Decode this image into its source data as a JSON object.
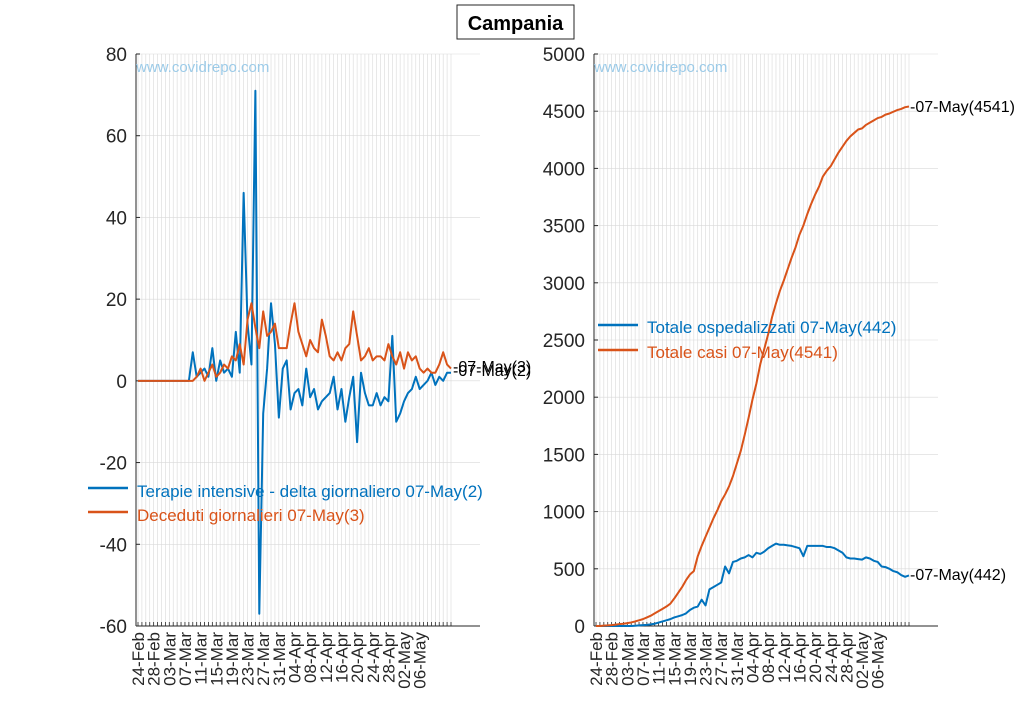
{
  "figure_title": "Campania",
  "colors": {
    "blue": "#0072bd",
    "orange": "#d95319",
    "watermark": "#9ccbe8",
    "grid": "#d9d9d9"
  },
  "chart_data": [
    {
      "type": "line",
      "watermark": "www.covidrepo.com",
      "ylim": [
        -60,
        80
      ],
      "yticks": [
        -60,
        -40,
        -20,
        0,
        20,
        40,
        60,
        80
      ],
      "ytick_labels": [
        "-60",
        "-40",
        "-20",
        "0",
        "20",
        "40",
        "60",
        "80"
      ],
      "x_start_date": "24-Feb",
      "xtick_labels": [
        "24-Feb",
        "28-Feb",
        "03-Mar",
        "07-Mar",
        "11-Mar",
        "15-Mar",
        "19-Mar",
        "23-Mar",
        "27-Mar",
        "31-Mar",
        "04-Apr",
        "08-Apr",
        "12-Apr",
        "16-Apr",
        "20-Apr",
        "24-Apr",
        "28-Apr",
        "02-May",
        "06-May"
      ],
      "grid": true,
      "legend_position": "lower-left",
      "series": [
        {
          "name": "Terapie intensive - delta giornaliero 07-May(2)",
          "color": "blue",
          "end_label": "-07-May(2)",
          "values": [
            0,
            0,
            0,
            0,
            0,
            0,
            0,
            0,
            0,
            0,
            0,
            0,
            0,
            0,
            7,
            1,
            2,
            3,
            1,
            8,
            0,
            5,
            2,
            3,
            1,
            12,
            2,
            46,
            14,
            4,
            71,
            -57,
            -8,
            3,
            19,
            9,
            -9,
            3,
            5,
            -7,
            -3,
            -2,
            -6,
            3,
            -4,
            -2,
            -7,
            -5,
            -4,
            -3,
            1,
            -7,
            -2,
            -10,
            -4,
            1,
            -15,
            2,
            -3,
            -6,
            -6,
            -3,
            -6,
            -4,
            -5,
            11,
            -10,
            -8,
            -5,
            -3,
            -2,
            1,
            -2,
            -1,
            0,
            2,
            -1,
            1,
            0,
            2,
            2
          ]
        },
        {
          "name": "Deceduti giornalieri 07-May(3)",
          "color": "orange",
          "end_label": "-07-May(3)",
          "values": [
            0,
            0,
            0,
            0,
            0,
            0,
            0,
            0,
            0,
            0,
            0,
            0,
            0,
            0,
            0,
            1,
            3,
            0,
            2,
            4,
            1,
            2,
            4,
            3,
            6,
            5,
            9,
            4,
            15,
            19,
            13,
            8,
            17,
            11,
            12,
            14,
            8,
            8,
            8,
            14,
            19,
            12,
            9,
            6,
            10,
            8,
            7,
            15,
            11,
            6,
            5,
            7,
            5,
            8,
            9,
            17,
            11,
            5,
            6,
            8,
            5,
            6,
            6,
            5,
            9,
            6,
            4,
            7,
            3,
            7,
            5,
            6,
            3,
            2,
            3,
            2,
            2,
            4,
            7,
            4,
            3
          ]
        }
      ]
    },
    {
      "type": "line",
      "watermark": "www.covidrepo.com",
      "ylim": [
        0,
        5000
      ],
      "yticks": [
        0,
        500,
        1000,
        1500,
        2000,
        2500,
        3000,
        3500,
        4000,
        4500,
        5000
      ],
      "ytick_labels": [
        "0",
        "500",
        "1000",
        "1500",
        "2000",
        "2500",
        "3000",
        "3500",
        "4000",
        "4500",
        "5000"
      ],
      "x_start_date": "24-Feb",
      "xtick_labels": [
        "24-Feb",
        "28-Feb",
        "03-Mar",
        "07-Mar",
        "11-Mar",
        "15-Mar",
        "19-Mar",
        "23-Mar",
        "27-Mar",
        "31-Mar",
        "04-Apr",
        "08-Apr",
        "12-Apr",
        "16-Apr",
        "20-Apr",
        "24-Apr",
        "28-Apr",
        "02-May",
        "06-May"
      ],
      "grid": true,
      "legend_position": "middle-left",
      "series": [
        {
          "name": "Totale ospedalizzati 07-May(442)",
          "color": "blue",
          "end_label": "-07-May(442)",
          "values": [
            0,
            0,
            0,
            0,
            0,
            0,
            0,
            0,
            0,
            0,
            2,
            5,
            8,
            10,
            14,
            20,
            30,
            40,
            50,
            60,
            75,
            85,
            95,
            110,
            140,
            160,
            170,
            230,
            180,
            320,
            340,
            360,
            380,
            520,
            460,
            560,
            570,
            590,
            600,
            620,
            600,
            640,
            630,
            650,
            680,
            700,
            720,
            710,
            710,
            705,
            700,
            690,
            680,
            610,
            700,
            700,
            700,
            700,
            700,
            690,
            690,
            680,
            660,
            640,
            600,
            590,
            590,
            585,
            580,
            600,
            590,
            570,
            560,
            520,
            515,
            500,
            480,
            470,
            445,
            430,
            442
          ]
        },
        {
          "name": "Totale casi 07-May(4541)",
          "color": "orange",
          "end_label": "-07-May(4541)",
          "values": [
            0,
            0,
            3,
            5,
            8,
            12,
            17,
            20,
            25,
            31,
            40,
            50,
            60,
            75,
            90,
            110,
            130,
            150,
            170,
            195,
            240,
            290,
            340,
            400,
            450,
            480,
            610,
            700,
            780,
            860,
            940,
            1010,
            1090,
            1150,
            1220,
            1310,
            1420,
            1530,
            1670,
            1820,
            1980,
            2120,
            2290,
            2420,
            2550,
            2700,
            2820,
            2930,
            3020,
            3120,
            3220,
            3310,
            3420,
            3500,
            3600,
            3690,
            3770,
            3840,
            3930,
            3980,
            4020,
            4080,
            4140,
            4190,
            4240,
            4280,
            4310,
            4340,
            4350,
            4380,
            4400,
            4420,
            4440,
            4450,
            4470,
            4480,
            4495,
            4510,
            4520,
            4535,
            4541
          ]
        }
      ]
    }
  ]
}
